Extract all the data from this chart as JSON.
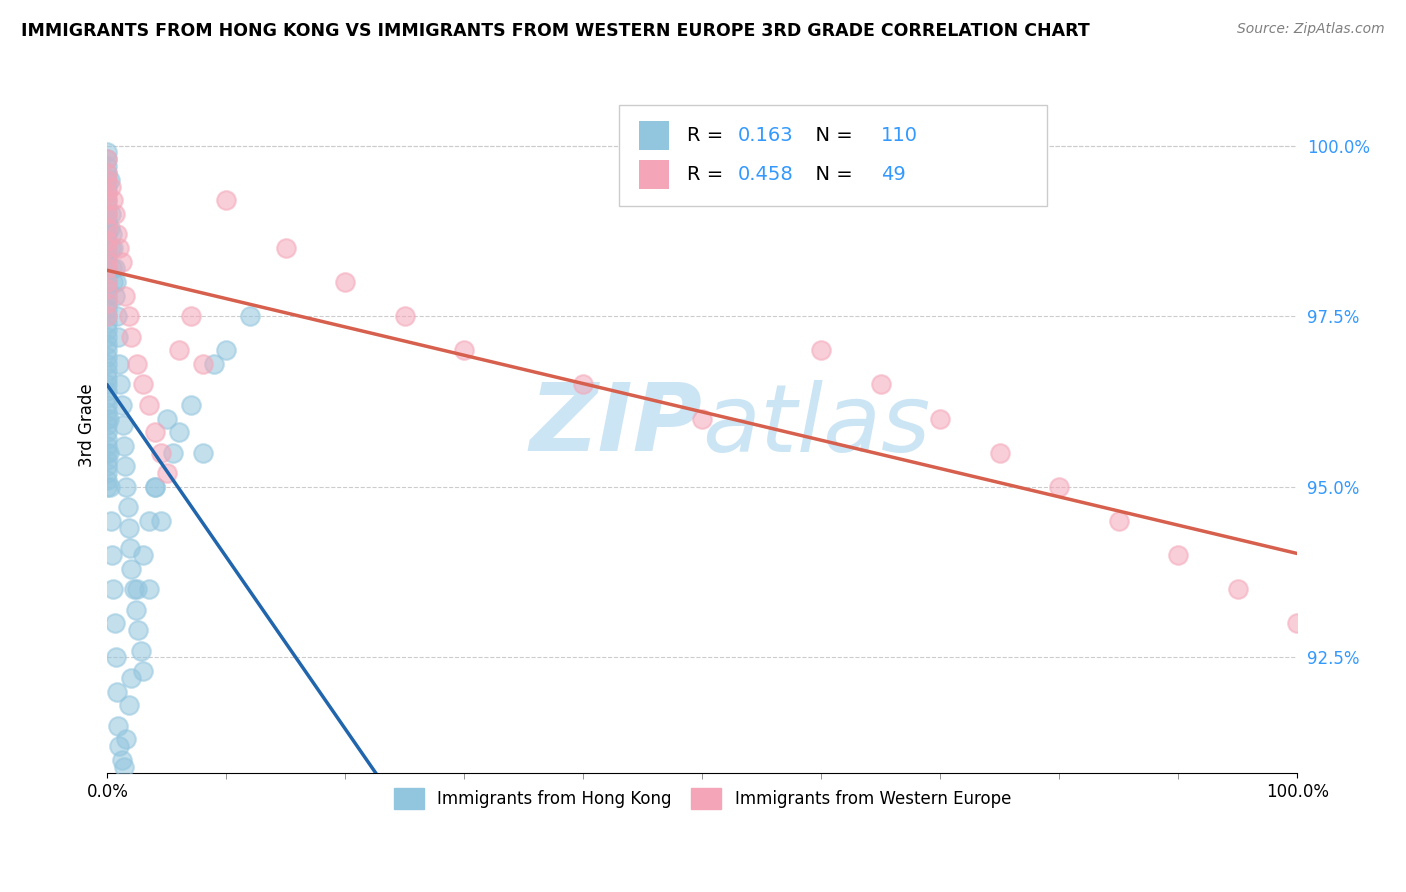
{
  "title": "IMMIGRANTS FROM HONG KONG VS IMMIGRANTS FROM WESTERN EUROPE 3RD GRADE CORRELATION CHART",
  "source": "Source: ZipAtlas.com",
  "ylabel": "3rd Grade",
  "legend_label1": "Immigrants from Hong Kong",
  "legend_label2": "Immigrants from Western Europe",
  "R1": 0.163,
  "N1": 110,
  "R2": 0.458,
  "N2": 49,
  "color_blue": "#92c5de",
  "color_pink": "#f4a6b8",
  "color_blue_line": "#2166ac",
  "color_pink_line": "#d6604d",
  "watermark_color": "#cce5f5",
  "grid_color": "#cccccc",
  "ytick_color": "#3399ff",
  "xlim": [
    0,
    100
  ],
  "ylim": [
    90.8,
    101.0
  ],
  "ytick_vals": [
    92.5,
    95.0,
    97.5,
    100.0
  ],
  "ytick_labels": [
    "92.5%",
    "95.0%",
    "97.5%",
    "100.0%"
  ],
  "xtick_vals": [
    0,
    100
  ],
  "xtick_labels": [
    "0.0%",
    "100.0%"
  ],
  "blue_x": [
    0.0,
    0.0,
    0.0,
    0.0,
    0.0,
    0.0,
    0.0,
    0.0,
    0.0,
    0.0,
    0.0,
    0.0,
    0.0,
    0.0,
    0.0,
    0.0,
    0.0,
    0.0,
    0.0,
    0.0,
    0.0,
    0.0,
    0.0,
    0.0,
    0.0,
    0.0,
    0.0,
    0.0,
    0.0,
    0.0,
    0.0,
    0.0,
    0.0,
    0.0,
    0.0,
    0.0,
    0.0,
    0.0,
    0.0,
    0.0,
    0.0,
    0.0,
    0.0,
    0.0,
    0.0,
    0.0,
    0.0,
    0.0,
    0.0,
    0.0,
    0.2,
    0.2,
    0.3,
    0.3,
    0.4,
    0.4,
    0.5,
    0.5,
    0.6,
    0.6,
    0.7,
    0.8,
    0.9,
    1.0,
    1.1,
    1.2,
    1.3,
    1.4,
    1.5,
    1.6,
    1.7,
    1.8,
    1.9,
    2.0,
    2.2,
    2.4,
    2.6,
    2.8,
    3.0,
    3.5,
    4.0,
    4.5,
    5.0,
    5.5,
    6.0,
    7.0,
    8.0,
    9.0,
    10.0,
    12.0,
    0.1,
    0.1,
    0.2,
    0.3,
    0.4,
    0.5,
    0.6,
    0.7,
    0.8,
    0.9,
    1.0,
    1.2,
    1.4,
    1.6,
    1.8,
    2.0,
    2.5,
    3.0,
    3.5,
    4.0
  ],
  "blue_y": [
    99.9,
    99.8,
    99.7,
    99.6,
    99.5,
    99.4,
    99.3,
    99.2,
    99.1,
    99.0,
    98.9,
    98.8,
    98.7,
    98.6,
    98.5,
    98.4,
    98.3,
    98.2,
    98.1,
    98.0,
    97.9,
    97.8,
    97.7,
    97.6,
    97.5,
    97.4,
    97.3,
    97.2,
    97.1,
    97.0,
    96.9,
    96.8,
    96.7,
    96.6,
    96.5,
    96.4,
    96.3,
    96.2,
    96.1,
    96.0,
    95.9,
    95.8,
    95.7,
    95.6,
    95.5,
    95.4,
    95.3,
    95.2,
    95.1,
    95.0,
    99.5,
    98.8,
    99.0,
    98.5,
    98.7,
    98.2,
    98.5,
    98.0,
    98.2,
    97.8,
    98.0,
    97.5,
    97.2,
    96.8,
    96.5,
    96.2,
    95.9,
    95.6,
    95.3,
    95.0,
    94.7,
    94.4,
    94.1,
    93.8,
    93.5,
    93.2,
    92.9,
    92.6,
    92.3,
    93.5,
    95.0,
    94.5,
    96.0,
    95.5,
    95.8,
    96.2,
    95.5,
    96.8,
    97.0,
    97.5,
    96.0,
    95.5,
    95.0,
    94.5,
    94.0,
    93.5,
    93.0,
    92.5,
    92.0,
    91.5,
    91.2,
    91.0,
    90.9,
    91.3,
    91.8,
    92.2,
    93.5,
    94.0,
    94.5,
    95.0
  ],
  "pink_x": [
    0.0,
    0.0,
    0.0,
    0.0,
    0.0,
    0.0,
    0.0,
    0.0,
    0.0,
    0.0,
    0.0,
    0.0,
    0.0,
    0.0,
    0.0,
    0.3,
    0.5,
    0.6,
    0.8,
    1.0,
    1.2,
    1.5,
    1.8,
    2.0,
    2.5,
    3.0,
    3.5,
    4.0,
    4.5,
    5.0,
    6.0,
    7.0,
    8.0,
    10.0,
    15.0,
    20.0,
    25.0,
    30.0,
    40.0,
    50.0,
    60.0,
    65.0,
    70.0,
    75.0,
    80.0,
    85.0,
    90.0,
    95.0,
    100.0
  ],
  "pink_y": [
    99.8,
    99.6,
    99.5,
    99.3,
    99.2,
    99.0,
    98.8,
    98.6,
    98.5,
    98.3,
    98.2,
    98.0,
    97.9,
    97.7,
    97.5,
    99.4,
    99.2,
    99.0,
    98.7,
    98.5,
    98.3,
    97.8,
    97.5,
    97.2,
    96.8,
    96.5,
    96.2,
    95.8,
    95.5,
    95.2,
    97.0,
    97.5,
    96.8,
    99.2,
    98.5,
    98.0,
    97.5,
    97.0,
    96.5,
    96.0,
    97.0,
    96.5,
    96.0,
    95.5,
    95.0,
    94.5,
    94.0,
    93.5,
    93.0
  ]
}
